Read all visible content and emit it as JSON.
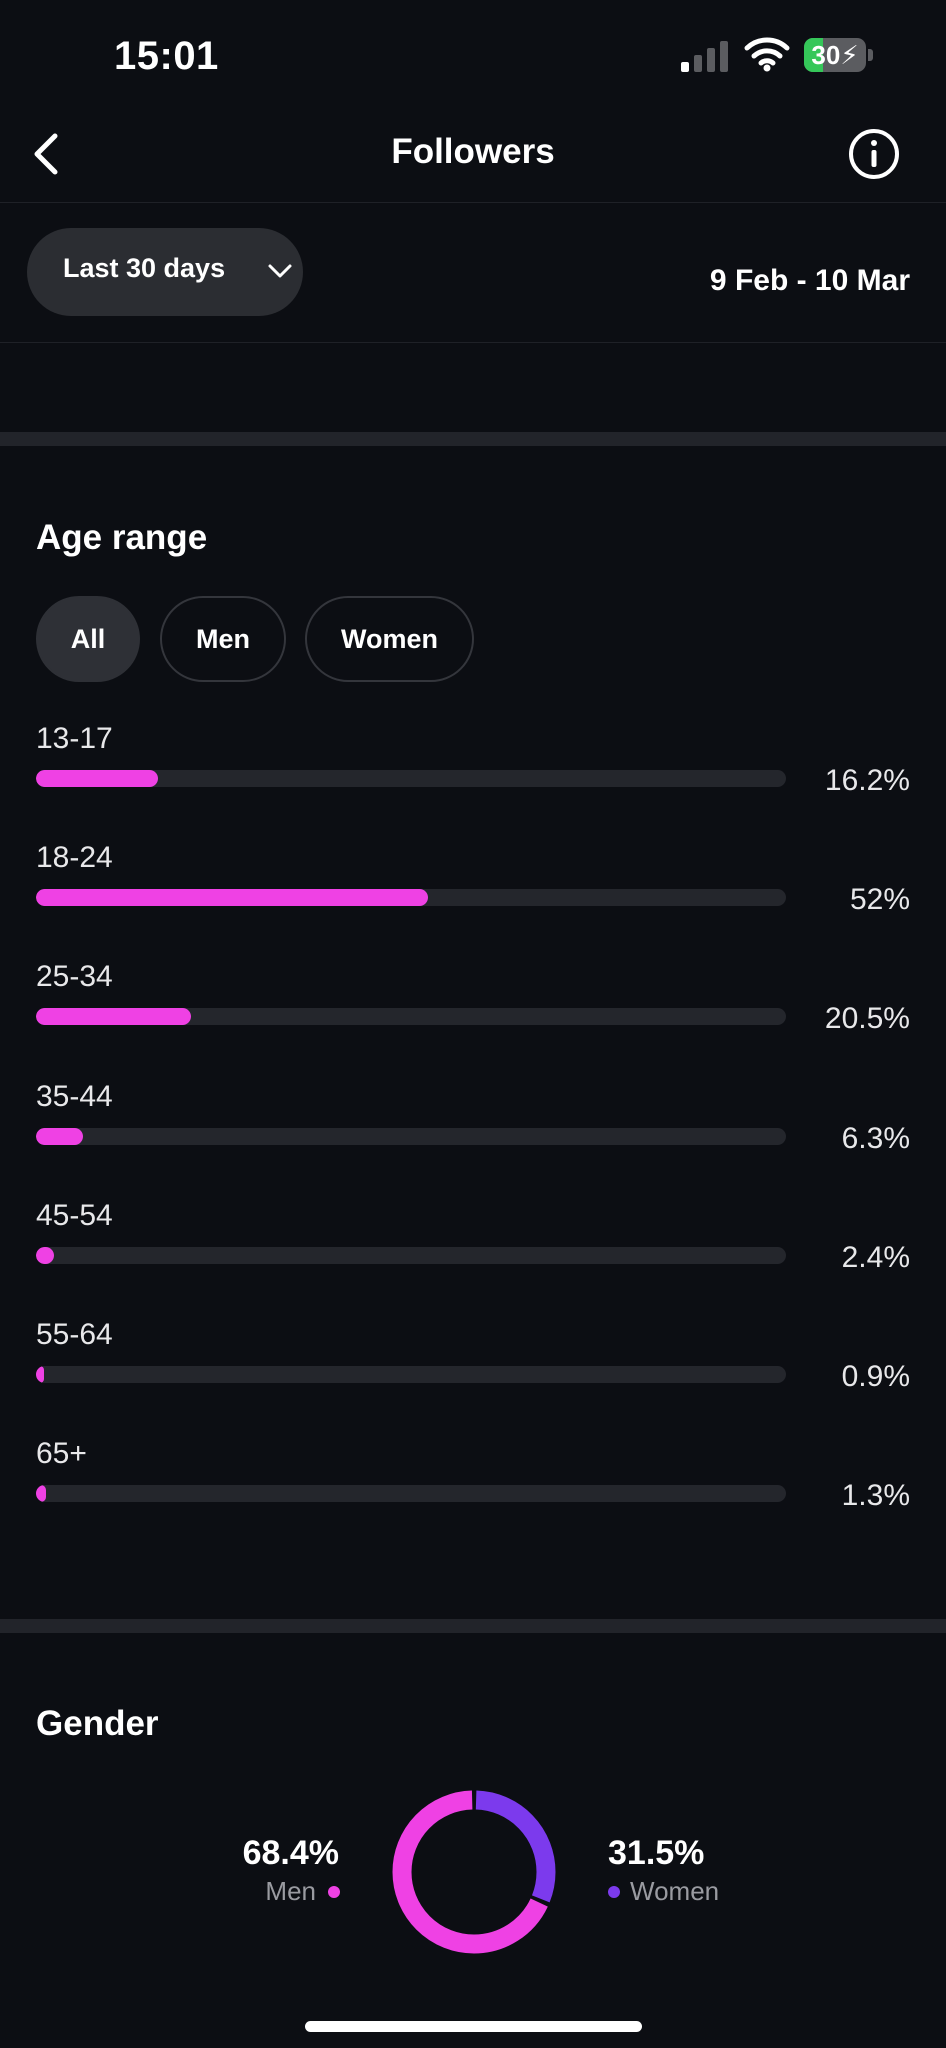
{
  "status_bar": {
    "time": "15:01",
    "battery": "30",
    "battery_level": 0.3
  },
  "nav": {
    "title": "Followers"
  },
  "filter": {
    "range_label": "Last 30 days",
    "date_range": "9 Feb - 10 Mar"
  },
  "age_section": {
    "title": "Age range",
    "tabs": [
      {
        "label": "All"
      },
      {
        "label": "Men"
      },
      {
        "label": "Women"
      }
    ],
    "rows": [
      {
        "label": "13-17",
        "value": "16.2%",
        "fraction": 0.162
      },
      {
        "label": "18-24",
        "value": "52%",
        "fraction": 0.52
      },
      {
        "label": "25-34",
        "value": "20.5%",
        "fraction": 0.205
      },
      {
        "label": "35-44",
        "value": "6.3%",
        "fraction": 0.063
      },
      {
        "label": "45-54",
        "value": "2.4%",
        "fraction": 0.024
      },
      {
        "label": "55-64",
        "value": "0.9%",
        "fraction": 0.009
      },
      {
        "label": "65+",
        "value": "1.3%",
        "fraction": 0.013
      }
    ]
  },
  "gender_section": {
    "title": "Gender",
    "men": {
      "value": "68.4%",
      "label": "Men",
      "fraction": 0.684
    },
    "women": {
      "value": "31.5%",
      "label": "Women",
      "fraction": 0.315
    }
  },
  "colors": {
    "accent_pink": "#ef41e4",
    "accent_purple": "#7c3aed",
    "track": "#24262c",
    "background": "#0c0e13"
  },
  "icons": {
    "back": "chevron-left-icon",
    "info": "info-circle-icon",
    "dropdown": "chevron-down-icon"
  }
}
